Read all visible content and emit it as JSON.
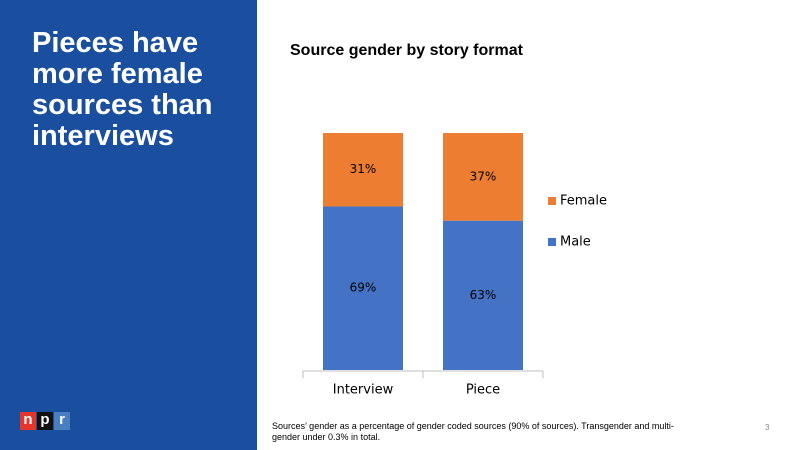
{
  "slide": {
    "headline": "Pieces have more female sources than interviews",
    "logo": [
      "n",
      "p",
      "r"
    ],
    "footnote": "Sources’ gender as a percentage of gender coded sources (90% of sources). Transgender and multi-gender under 0.3% in total.",
    "page_number": 3
  },
  "chart_data": {
    "type": "stacked-bar",
    "title": "Source gender by story format",
    "categories": [
      "Interview",
      "Piece"
    ],
    "series": [
      {
        "name": "Male",
        "color": "#4472c4",
        "values": [
          69,
          63
        ],
        "value_labels": [
          "69%",
          "63%"
        ]
      },
      {
        "name": "Female",
        "color": "#ed7d31",
        "values": [
          31,
          37
        ],
        "value_labels": [
          "31%",
          "37%"
        ]
      }
    ]
  }
}
